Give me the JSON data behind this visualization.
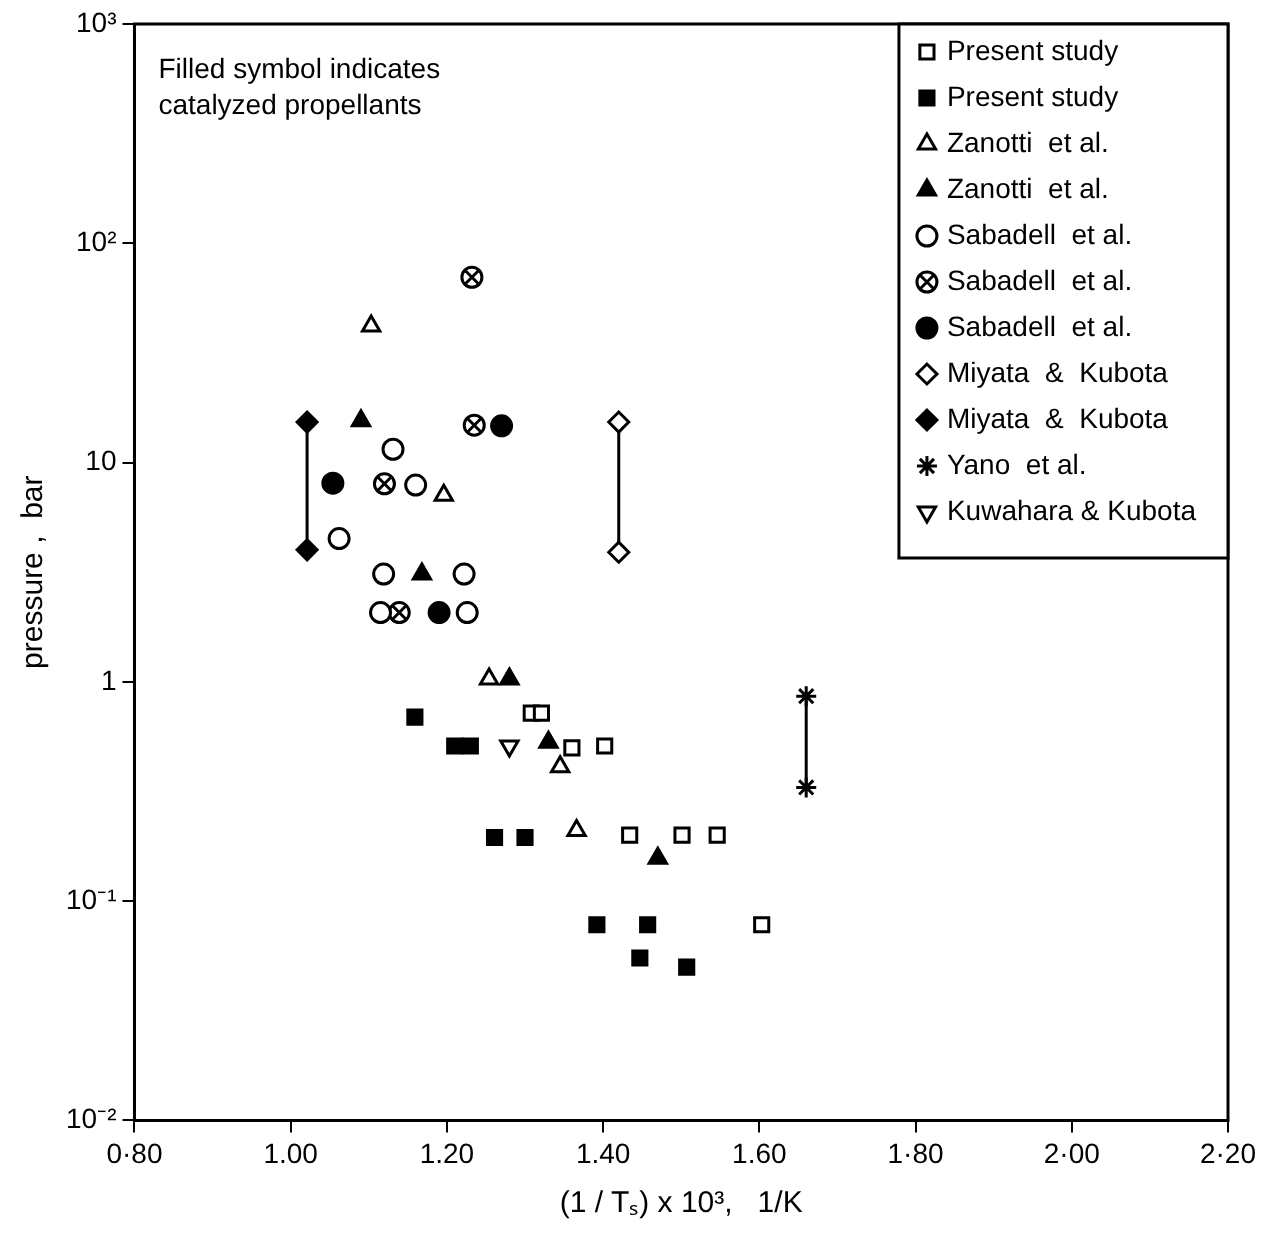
{
  "chart_data": {
    "type": "scatter",
    "xlabel": "(1 / Tₛ) x 10³,   1/K",
    "ylabel": "pressure ,  bar",
    "annotations": [
      "Filled symbol indicates catalyzed propellants"
    ],
    "xlim": [
      0.8,
      2.2
    ],
    "xticks": [
      {
        "value": 0.8,
        "label": "0·80"
      },
      {
        "value": 1.0,
        "label": "1.00"
      },
      {
        "value": 1.2,
        "label": "1.20"
      },
      {
        "value": 1.4,
        "label": "1.40"
      },
      {
        "value": 1.6,
        "label": "1.60"
      },
      {
        "value": 1.8,
        "label": "1·80"
      },
      {
        "value": 2.0,
        "label": "2·00"
      },
      {
        "value": 2.2,
        "label": "2·20"
      }
    ],
    "ylim": [
      0.01,
      1000
    ],
    "log": true,
    "yticks": [
      {
        "value": 0.01,
        "label": "10⁻²"
      },
      {
        "value": 0.1,
        "label": "10⁻¹"
      },
      1,
      10,
      {
        "value": 100,
        "label": "10²"
      },
      {
        "value": 1000,
        "label": "10³"
      }
    ],
    "grid": false,
    "legend": "top right",
    "series": [
      {
        "name": "Present study",
        "color": "#000000",
        "marker": "square-open",
        "x": [
          1.308,
          1.321,
          1.36,
          1.402,
          1.434,
          1.501,
          1.546,
          1.603
        ],
        "values": [
          0.72,
          0.72,
          0.5,
          0.51,
          0.2,
          0.2,
          0.2,
          0.078
        ]
      },
      {
        "name": "Present study",
        "color": "#000000",
        "marker": "square",
        "x": [
          1.159,
          1.21,
          1.23,
          1.261,
          1.3,
          1.392,
          1.457,
          1.447,
          1.507
        ],
        "values": [
          0.69,
          0.51,
          0.51,
          0.195,
          0.195,
          0.078,
          0.078,
          0.055,
          0.05
        ]
      },
      {
        "name": "Zanotti  et al.",
        "color": "#000000",
        "marker": "triangle-open",
        "x": [
          1.103,
          1.196,
          1.254,
          1.345,
          1.366
        ],
        "values": [
          42,
          7.1,
          1.03,
          0.41,
          0.21
        ]
      },
      {
        "name": "Zanotti  et al.",
        "color": "#000000",
        "marker": "triangle",
        "x": [
          1.09,
          1.168,
          1.28,
          1.33,
          1.47
        ],
        "values": [
          15.5,
          3.1,
          1.03,
          0.53,
          0.157
        ]
      },
      {
        "name": "Sabadell  et al.",
        "color": "#000000",
        "marker": "circle-open",
        "x": [
          1.131,
          1.16,
          1.062,
          1.119,
          1.222,
          1.115,
          1.226
        ],
        "values": [
          11.5,
          7.9,
          4.5,
          3.1,
          3.1,
          2.07,
          2.07
        ]
      },
      {
        "name": "Sabadell  et al.",
        "color": "#000000",
        "marker": "circle-cross-open",
        "x": [
          1.232,
          1.235,
          1.12,
          1.139
        ],
        "values": [
          70,
          14.8,
          8,
          2.07
        ]
      },
      {
        "name": "Sabadell  et al.",
        "color": "#000000",
        "marker": "circle",
        "x": [
          1.27,
          1.054,
          1.19
        ],
        "values": [
          14.7,
          8.05,
          2.07
        ]
      },
      {
        "name": "Miyata  &  Kubota",
        "color": "#000000",
        "marker": "diamond-open",
        "type": "line",
        "x": [
          1.42,
          1.42
        ],
        "values": [
          15.3,
          3.9
        ]
      },
      {
        "name": "Miyata  &  Kubota",
        "color": "#000000",
        "marker": "diamond",
        "type": "line",
        "x": [
          1.021,
          1.021
        ],
        "values": [
          15.3,
          4.0
        ]
      },
      {
        "name": "Yano  et al.",
        "color": "#000000",
        "marker": "cross",
        "type": "line",
        "x": [
          1.66,
          1.66
        ],
        "values": [
          0.86,
          0.33
        ]
      },
      {
        "name": "Kuwahara & Kubota",
        "color": "#000000",
        "marker": "triangle-down-open",
        "x": [
          1.28
        ],
        "values": [
          0.51
        ]
      }
    ]
  }
}
